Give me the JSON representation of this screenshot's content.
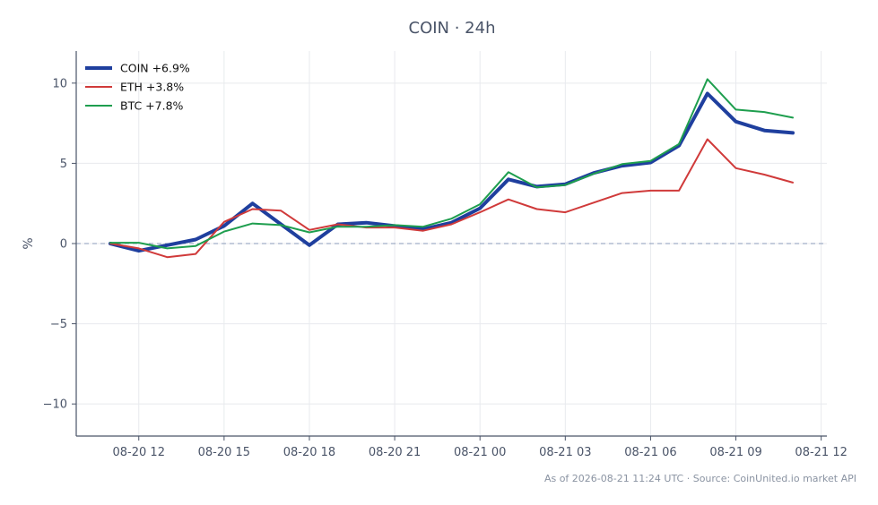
{
  "chart_data": {
    "type": "line",
    "title": "COIN · 24h",
    "ylabel": "%",
    "xlabel": "",
    "footer": "As of 2026-08-21 11:24 UTC · Source: CoinUnited.io market API",
    "x_range_hours": [
      -1.2,
      25.2
    ],
    "ylim": [
      -12,
      12
    ],
    "grid": true,
    "legend_position": "top-left",
    "zero_line": true,
    "x_ticks": [
      {
        "h": 1,
        "label": "08-20 12"
      },
      {
        "h": 4,
        "label": "08-20 15"
      },
      {
        "h": 7,
        "label": "08-20 18"
      },
      {
        "h": 10,
        "label": "08-20 21"
      },
      {
        "h": 13,
        "label": "08-21 00"
      },
      {
        "h": 16,
        "label": "08-21 03"
      },
      {
        "h": 19,
        "label": "08-21 06"
      },
      {
        "h": 22,
        "label": "08-21 09"
      },
      {
        "h": 25,
        "label": "08-21 12"
      }
    ],
    "y_ticks": [
      {
        "v": 10,
        "label": "10"
      },
      {
        "v": 5,
        "label": "5"
      },
      {
        "v": 0,
        "label": "0"
      },
      {
        "v": -5,
        "label": "−5"
      },
      {
        "v": -10,
        "label": "−10"
      }
    ],
    "x_hours": [
      0,
      1,
      2,
      3,
      4,
      5,
      6,
      7,
      8,
      9,
      10,
      11,
      12,
      13,
      14,
      15,
      16,
      17,
      18,
      19,
      20,
      21,
      22,
      23,
      24
    ],
    "series": [
      {
        "name": "COIN +6.9%",
        "color": "#1f3f9e",
        "width": 4,
        "values": [
          0.0,
          -0.45,
          -0.1,
          0.25,
          1.1,
          2.5,
          1.2,
          -0.1,
          1.2,
          1.3,
          1.1,
          0.9,
          1.3,
          2.2,
          4.0,
          3.55,
          3.7,
          4.4,
          4.85,
          5.05,
          6.1,
          9.35,
          7.6,
          7.05,
          6.9
        ]
      },
      {
        "name": "ETH +3.8%",
        "color": "#d03a3a",
        "width": 2,
        "values": [
          0.0,
          -0.3,
          -0.85,
          -0.65,
          1.35,
          2.15,
          2.05,
          0.85,
          1.2,
          1.0,
          1.0,
          0.8,
          1.2,
          1.95,
          2.75,
          2.15,
          1.95,
          2.55,
          3.15,
          3.3,
          3.3,
          6.5,
          4.7,
          4.3,
          3.8
        ]
      },
      {
        "name": "BTC +7.8%",
        "color": "#1e9e4e",
        "width": 2,
        "values": [
          0.05,
          0.05,
          -0.3,
          -0.15,
          0.75,
          1.25,
          1.15,
          0.7,
          1.05,
          1.05,
          1.15,
          1.05,
          1.55,
          2.45,
          4.45,
          3.5,
          3.65,
          4.35,
          4.95,
          5.15,
          6.2,
          10.25,
          8.35,
          8.2,
          7.85
        ]
      }
    ]
  }
}
